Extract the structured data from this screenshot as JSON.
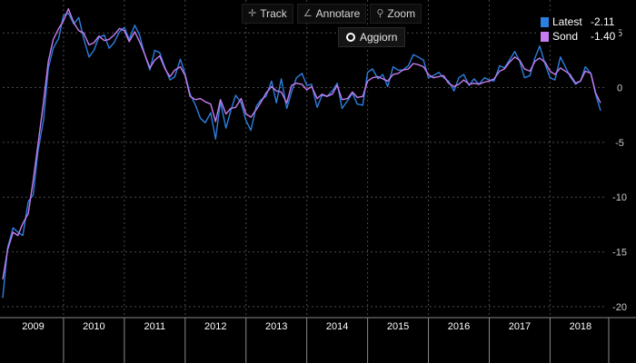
{
  "toolbar": {
    "track_label": "Track",
    "annotate_label": "Annotare",
    "zoom_label": "Zoom",
    "refresh_label": "Aggiorn"
  },
  "legend": {
    "items": [
      {
        "label": "Latest",
        "value": "-2.11",
        "color": "#2b7fe0"
      },
      {
        "label": "Sond",
        "value": "-1.40",
        "color": "#c77cf0"
      }
    ]
  },
  "colors": {
    "background": "#000000",
    "grid": "#4a4a4a",
    "axis_text": "#cccccc"
  },
  "chart_data": {
    "type": "line",
    "x_tick_labels": [
      "2009",
      "2010",
      "2011",
      "2012",
      "2013",
      "2014",
      "2015",
      "2016",
      "2017",
      "2018"
    ],
    "y_ticks": [
      5,
      0,
      -5,
      -10,
      -15,
      -20
    ],
    "ylim": [
      -21,
      8
    ],
    "xlim": [
      2009.0,
      2018.92
    ],
    "grid": true,
    "legend_position": "top-right",
    "series": [
      {
        "name": "Latest",
        "color": "#2b7fe0",
        "x": [
          2009.0,
          2009.08,
          2009.17,
          2009.25,
          2009.33,
          2009.42,
          2009.5,
          2009.58,
          2009.67,
          2009.75,
          2009.83,
          2009.92,
          2010.0,
          2010.08,
          2010.17,
          2010.25,
          2010.33,
          2010.42,
          2010.5,
          2010.58,
          2010.67,
          2010.75,
          2010.83,
          2010.92,
          2011.0,
          2011.08,
          2011.17,
          2011.25,
          2011.33,
          2011.42,
          2011.5,
          2011.58,
          2011.67,
          2011.75,
          2011.83,
          2011.92,
          2012.0,
          2012.08,
          2012.17,
          2012.25,
          2012.33,
          2012.42,
          2012.5,
          2012.58,
          2012.67,
          2012.75,
          2012.83,
          2012.92,
          2013.0,
          2013.08,
          2013.17,
          2013.25,
          2013.33,
          2013.42,
          2013.5,
          2013.58,
          2013.67,
          2013.75,
          2013.83,
          2013.92,
          2014.0,
          2014.08,
          2014.17,
          2014.25,
          2014.33,
          2014.42,
          2014.5,
          2014.58,
          2014.67,
          2014.75,
          2014.83,
          2014.92,
          2015.0,
          2015.08,
          2015.17,
          2015.25,
          2015.33,
          2015.42,
          2015.5,
          2015.58,
          2015.67,
          2015.75,
          2015.83,
          2015.92,
          2016.0,
          2016.08,
          2016.17,
          2016.25,
          2016.33,
          2016.42,
          2016.5,
          2016.58,
          2016.67,
          2016.75,
          2016.83,
          2016.92,
          2017.0,
          2017.08,
          2017.17,
          2017.25,
          2017.33,
          2017.42,
          2017.5,
          2017.58,
          2017.67,
          2017.75,
          2017.83,
          2017.92,
          2018.0,
          2018.08,
          2018.17,
          2018.25,
          2018.33,
          2018.42,
          2018.5,
          2018.58,
          2018.67,
          2018.75,
          2018.83
        ],
        "y": [
          -19.2,
          -14.6,
          -12.8,
          -13.2,
          -13.5,
          -10.4,
          -9.8,
          -5.8,
          -3.0,
          1.8,
          3.6,
          4.5,
          6.6,
          6.8,
          5.8,
          6.4,
          4.5,
          2.8,
          3.4,
          4.6,
          4.8,
          3.6,
          4.1,
          5.1,
          5.5,
          4.4,
          5.7,
          4.8,
          3.1,
          1.6,
          3.4,
          3.2,
          1.8,
          0.7,
          1.0,
          2.6,
          1.2,
          -0.6,
          -1.6,
          -2.8,
          -3.2,
          -2.3,
          -4.7,
          -1.3,
          -3.7,
          -2.1,
          -0.7,
          -1.4,
          -3.0,
          -3.9,
          -1.7,
          -1.1,
          -0.8,
          0.6,
          -1.4,
          0.8,
          -1.9,
          -0.4,
          0.9,
          1.3,
          0.2,
          0.3,
          -1.8,
          -0.7,
          -0.8,
          -0.3,
          0.4,
          -1.9,
          -1.2,
          -0.5,
          -1.5,
          -1.6,
          1.4,
          1.7,
          0.8,
          1.2,
          0.1,
          1.9,
          1.6,
          1.6,
          2.0,
          3.0,
          2.8,
          2.5,
          0.9,
          1.1,
          1.4,
          0.9,
          0.6,
          -0.3,
          0.9,
          1.2,
          0.2,
          0.8,
          0.3,
          0.9,
          0.7,
          0.6,
          2.0,
          1.8,
          2.5,
          3.3,
          2.4,
          0.9,
          1.1,
          2.7,
          3.8,
          2.1,
          0.9,
          0.7,
          2.8,
          1.9,
          1.0,
          0.3,
          0.6,
          1.9,
          1.3,
          -0.6,
          -2.11
        ]
      },
      {
        "name": "Sond",
        "color": "#c77cf0",
        "x": [
          2009.0,
          2009.08,
          2009.17,
          2009.25,
          2009.33,
          2009.42,
          2009.5,
          2009.58,
          2009.67,
          2009.75,
          2009.83,
          2009.92,
          2010.0,
          2010.08,
          2010.17,
          2010.25,
          2010.33,
          2010.42,
          2010.5,
          2010.58,
          2010.67,
          2010.75,
          2010.83,
          2010.92,
          2011.0,
          2011.08,
          2011.17,
          2011.25,
          2011.33,
          2011.42,
          2011.5,
          2011.58,
          2011.67,
          2011.75,
          2011.83,
          2011.92,
          2012.0,
          2012.08,
          2012.17,
          2012.25,
          2012.33,
          2012.42,
          2012.5,
          2012.58,
          2012.67,
          2012.75,
          2012.83,
          2012.92,
          2013.0,
          2013.08,
          2013.17,
          2013.25,
          2013.33,
          2013.42,
          2013.5,
          2013.58,
          2013.67,
          2013.75,
          2013.83,
          2013.92,
          2014.0,
          2014.08,
          2014.17,
          2014.25,
          2014.33,
          2014.42,
          2014.5,
          2014.58,
          2014.67,
          2014.75,
          2014.83,
          2014.92,
          2015.0,
          2015.08,
          2015.17,
          2015.25,
          2015.33,
          2015.42,
          2015.5,
          2015.58,
          2015.67,
          2015.75,
          2015.83,
          2015.92,
          2016.0,
          2016.08,
          2016.17,
          2016.25,
          2016.33,
          2016.42,
          2016.5,
          2016.58,
          2016.67,
          2016.75,
          2016.83,
          2016.92,
          2017.0,
          2017.08,
          2017.17,
          2017.25,
          2017.33,
          2017.42,
          2017.5,
          2017.58,
          2017.67,
          2017.75,
          2017.83,
          2017.92,
          2018.0,
          2018.08,
          2018.17,
          2018.25,
          2018.33,
          2018.42,
          2018.5,
          2018.58,
          2018.67,
          2018.75,
          2018.83
        ],
        "y": [
          -17.5,
          -14.8,
          -13.2,
          -13.5,
          -12.4,
          -11.5,
          -8.5,
          -5.2,
          -1.4,
          2.4,
          4.4,
          5.4,
          6.1,
          7.2,
          5.9,
          5.2,
          5.0,
          3.9,
          4.1,
          4.7,
          4.3,
          4.4,
          4.8,
          5.4,
          5.2,
          4.2,
          5.1,
          4.2,
          3.1,
          1.8,
          2.5,
          2.9,
          1.7,
          1.0,
          1.6,
          1.9,
          1.1,
          -0.8,
          -1.1,
          -1.0,
          -1.3,
          -1.5,
          -3.1,
          -1.1,
          -2.4,
          -1.9,
          -1.8,
          -1.0,
          -2.4,
          -2.7,
          -2.0,
          -1.3,
          -0.5,
          0.1,
          -0.3,
          -0.4,
          -1.4,
          0.2,
          0.4,
          0.3,
          -0.2,
          0.1,
          -1.0,
          -0.6,
          -0.8,
          -0.6,
          0.2,
          -1.1,
          -1.0,
          -0.4,
          -0.9,
          -0.8,
          0.6,
          0.9,
          1.0,
          0.8,
          0.6,
          1.2,
          1.3,
          1.6,
          1.7,
          2.2,
          2.1,
          1.9,
          1.2,
          0.9,
          1.0,
          1.1,
          0.4,
          0.1,
          0.3,
          0.7,
          0.3,
          0.4,
          0.3,
          0.5,
          0.6,
          0.8,
          1.5,
          1.7,
          2.3,
          2.8,
          2.5,
          1.7,
          1.5,
          2.4,
          2.7,
          2.3,
          1.5,
          1.2,
          1.8,
          1.5,
          1.2,
          0.4,
          0.6,
          1.5,
          1.3,
          -0.5,
          -1.4
        ]
      }
    ]
  }
}
